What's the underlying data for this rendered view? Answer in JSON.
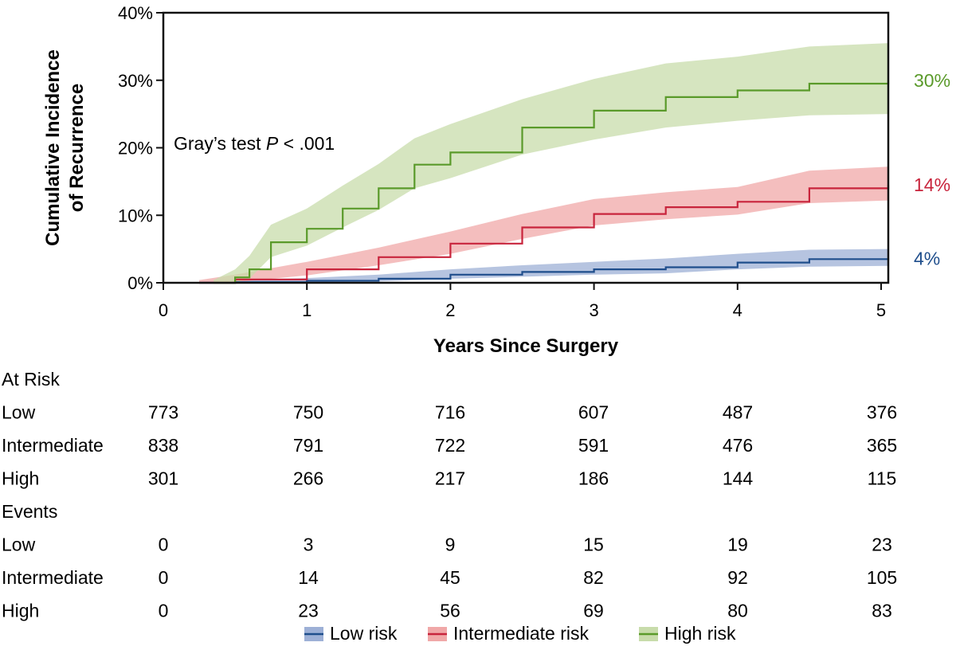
{
  "chart_data": {
    "type": "line",
    "title": "",
    "xlabel": "Years Since Surgery",
    "ylabel_lines": [
      "Cumulative Incidence",
      "of Recurrence"
    ],
    "xlim": [
      0,
      5.05
    ],
    "ylim": [
      0,
      40
    ],
    "x_ticks": [
      0,
      1,
      2,
      3,
      4,
      5
    ],
    "x_tick_labels": [
      "0",
      "1",
      "2",
      "3",
      "4",
      "5"
    ],
    "y_ticks": [
      0,
      10,
      20,
      30,
      40
    ],
    "y_tick_labels": [
      "0%",
      "10%",
      "20%",
      "30%",
      "40%"
    ],
    "annotation": {
      "prefix": "Gray’s test ",
      "p": "P",
      "suffix": " < .001"
    },
    "series": [
      {
        "name": "Low risk",
        "color": "#1f4e8c",
        "band_color": "#9db0d6",
        "end_label": "4%",
        "x": [
          0.25,
          0.5,
          1.0,
          1.5,
          2.0,
          2.5,
          3.0,
          3.5,
          4.0,
          4.5,
          5.05
        ],
        "y": [
          0,
          0.1,
          0.3,
          0.6,
          1.2,
          1.6,
          2.0,
          2.3,
          3.0,
          3.5,
          3.6
        ],
        "lower": [
          0,
          0,
          0.1,
          0.2,
          0.6,
          0.9,
          1.2,
          1.4,
          2.0,
          2.4,
          2.5
        ],
        "upper": [
          0.2,
          0.4,
          0.7,
          1.2,
          2.0,
          2.6,
          3.1,
          3.6,
          4.3,
          4.9,
          5.0
        ]
      },
      {
        "name": "Intermediate risk",
        "color": "#c8243c",
        "band_color": "#f0a8a8",
        "end_label": "14%",
        "x": [
          0.25,
          0.5,
          1.0,
          1.5,
          2.0,
          2.5,
          3.0,
          3.5,
          4.0,
          4.5,
          5.05
        ],
        "y": [
          0,
          0.5,
          2.0,
          3.8,
          5.8,
          8.2,
          10.2,
          11.2,
          12.0,
          14.0,
          14.5
        ],
        "lower": [
          0,
          0.1,
          1.1,
          2.6,
          4.3,
          6.5,
          8.5,
          9.4,
          10.1,
          11.8,
          12.2
        ],
        "upper": [
          0.4,
          1.2,
          3.1,
          5.2,
          7.6,
          10.2,
          12.4,
          13.4,
          14.2,
          16.6,
          17.2
        ]
      },
      {
        "name": "High risk",
        "color": "#5a9a2a",
        "band_color": "#c8dcab",
        "end_label": "30%",
        "x": [
          0.35,
          0.5,
          0.6,
          0.75,
          1.0,
          1.25,
          1.5,
          1.75,
          2.0,
          2.5,
          3.0,
          3.5,
          4.0,
          4.5,
          5.05
        ],
        "y": [
          0,
          0.8,
          2.0,
          6.0,
          8.0,
          11.0,
          14.0,
          17.5,
          19.3,
          23.0,
          25.5,
          27.5,
          28.5,
          29.5,
          30.0
        ],
        "lower": [
          0,
          0.1,
          0.6,
          3.8,
          5.5,
          8.2,
          10.8,
          14.0,
          15.5,
          19.0,
          21.2,
          23.0,
          24.0,
          24.8,
          25.0
        ],
        "upper": [
          0.4,
          2.0,
          4.0,
          8.6,
          11.0,
          14.4,
          17.6,
          21.4,
          23.5,
          27.2,
          30.2,
          32.5,
          33.5,
          35.0,
          35.5
        ]
      }
    ],
    "at_risk": {
      "header": "At Risk",
      "rows": [
        {
          "label": "Low",
          "values": [
            "773",
            "750",
            "716",
            "607",
            "487",
            "376"
          ]
        },
        {
          "label": "Intermediate",
          "values": [
            "838",
            "791",
            "722",
            "591",
            "476",
            "365"
          ]
        },
        {
          "label": "High",
          "values": [
            "301",
            "266",
            "217",
            "186",
            "144",
            "115"
          ]
        }
      ]
    },
    "events": {
      "header": "Events",
      "rows": [
        {
          "label": "Low",
          "values": [
            "0",
            "3",
            "9",
            "15",
            "19",
            "23"
          ]
        },
        {
          "label": "Intermediate",
          "values": [
            "0",
            "14",
            "45",
            "82",
            "92",
            "105"
          ]
        },
        {
          "label": "High",
          "values": [
            "0",
            "23",
            "56",
            "69",
            "80",
            "83"
          ]
        }
      ]
    },
    "legend": {
      "position": "bottom"
    }
  }
}
